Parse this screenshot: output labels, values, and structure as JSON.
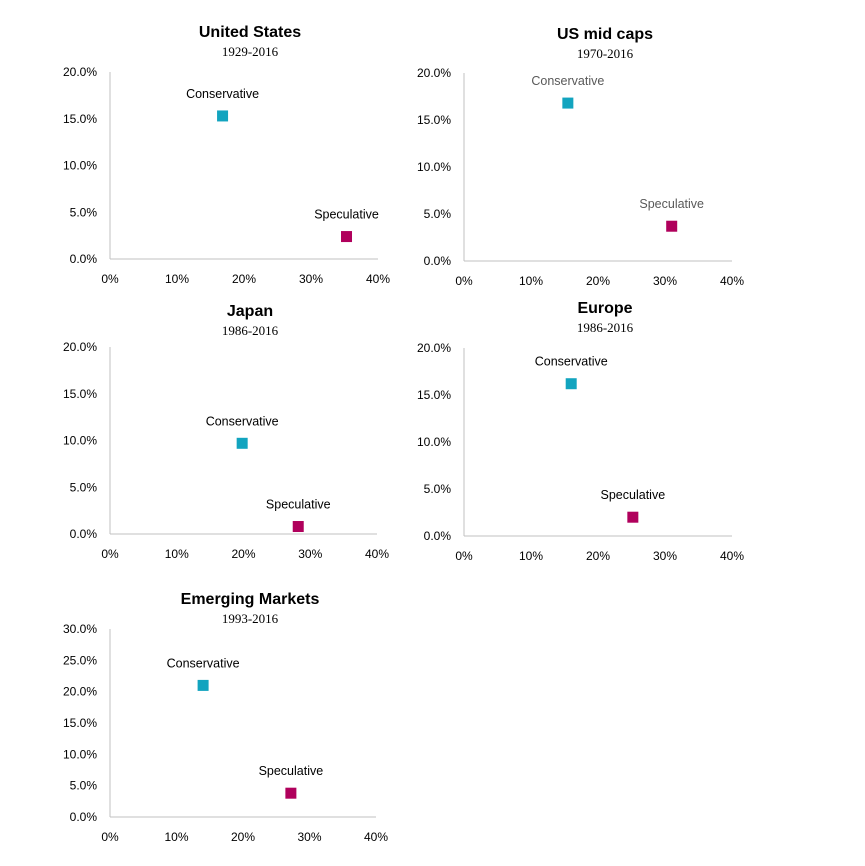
{
  "colors": {
    "conservative": "#12A4BF",
    "speculative": "#B0005C",
    "axis": "#C0C0C0"
  },
  "chart_data": [
    {
      "type": "scatter",
      "title": "United States",
      "subtitle": "1929-2016",
      "xlim": [
        0,
        40
      ],
      "ylim": [
        0,
        20
      ],
      "xticks": [
        "0%",
        "10%",
        "20%",
        "30%",
        "40%"
      ],
      "yticks": [
        "0.0%",
        "5.0%",
        "10.0%",
        "15.0%",
        "20.0%"
      ],
      "points": [
        {
          "name": "Conservative",
          "x": 16.8,
          "y": 15.3,
          "color": "#12A4BF"
        },
        {
          "name": "Speculative",
          "x": 35.3,
          "y": 2.4,
          "color": "#B0005C"
        }
      ]
    },
    {
      "type": "scatter",
      "title": "US mid caps",
      "subtitle": "1970-2016",
      "xlim": [
        0,
        40
      ],
      "ylim": [
        0,
        20
      ],
      "xticks": [
        "0%",
        "10%",
        "20%",
        "30%",
        "40%"
      ],
      "yticks": [
        "0.0%",
        "5.0%",
        "10.0%",
        "15.0%",
        "20.0%"
      ],
      "points": [
        {
          "name": "Conservative",
          "x": 15.5,
          "y": 16.8,
          "color": "#12A4BF"
        },
        {
          "name": "Speculative",
          "x": 31.0,
          "y": 3.7,
          "color": "#B0005C"
        }
      ]
    },
    {
      "type": "scatter",
      "title": "Japan",
      "subtitle": "1986-2016",
      "xlim": [
        0,
        40
      ],
      "ylim": [
        0,
        20
      ],
      "xticks": [
        "0%",
        "10%",
        "20%",
        "30%",
        "40%"
      ],
      "yticks": [
        "0.0%",
        "5.0%",
        "10.0%",
        "15.0%",
        "20.0%"
      ],
      "points": [
        {
          "name": "Conservative",
          "x": 19.8,
          "y": 9.7,
          "color": "#12A4BF"
        },
        {
          "name": "Speculative",
          "x": 28.2,
          "y": 0.8,
          "color": "#B0005C"
        }
      ]
    },
    {
      "type": "scatter",
      "title": "Europe",
      "subtitle": "1986-2016",
      "xlim": [
        0,
        40
      ],
      "ylim": [
        0,
        20
      ],
      "xticks": [
        "0%",
        "10%",
        "20%",
        "30%",
        "40%"
      ],
      "yticks": [
        "0.0%",
        "5.0%",
        "10.0%",
        "15.0%",
        "20.0%"
      ],
      "points": [
        {
          "name": "Conservative",
          "x": 16.0,
          "y": 16.2,
          "color": "#12A4BF"
        },
        {
          "name": "Speculative",
          "x": 25.2,
          "y": 2.0,
          "color": "#B0005C"
        }
      ]
    },
    {
      "type": "scatter",
      "title": "Emerging Markets",
      "subtitle": "1993-2016",
      "xlim": [
        0,
        40
      ],
      "ylim": [
        0,
        30
      ],
      "xticks": [
        "0%",
        "10%",
        "20%",
        "30%",
        "40%"
      ],
      "yticks": [
        "0.0%",
        "5.0%",
        "10.0%",
        "15.0%",
        "20.0%",
        "25.0%",
        "30.0%"
      ],
      "points": [
        {
          "name": "Conservative",
          "x": 14.0,
          "y": 21.0,
          "color": "#12A4BF"
        },
        {
          "name": "Speculative",
          "x": 27.2,
          "y": 3.8,
          "color": "#B0005C"
        }
      ]
    }
  ]
}
